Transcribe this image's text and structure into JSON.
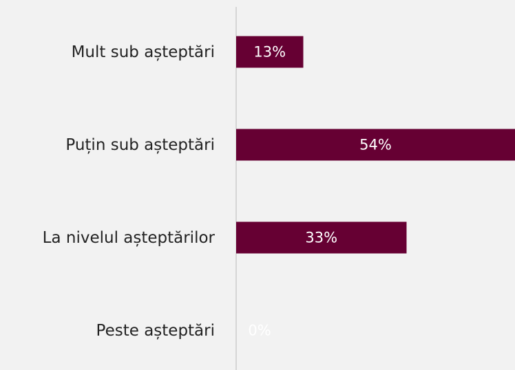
{
  "chart_data": {
    "type": "bar",
    "orientation": "horizontal",
    "categories": [
      "Mult sub așteptări",
      "Puțin sub așteptări",
      "La nivelul așteptărilor",
      "Peste așteptări"
    ],
    "values": [
      13,
      54,
      33,
      0
    ],
    "value_labels": [
      "13%",
      "54%",
      "33%",
      "0%"
    ],
    "color": "#660033",
    "xlim": [
      0,
      54
    ]
  }
}
